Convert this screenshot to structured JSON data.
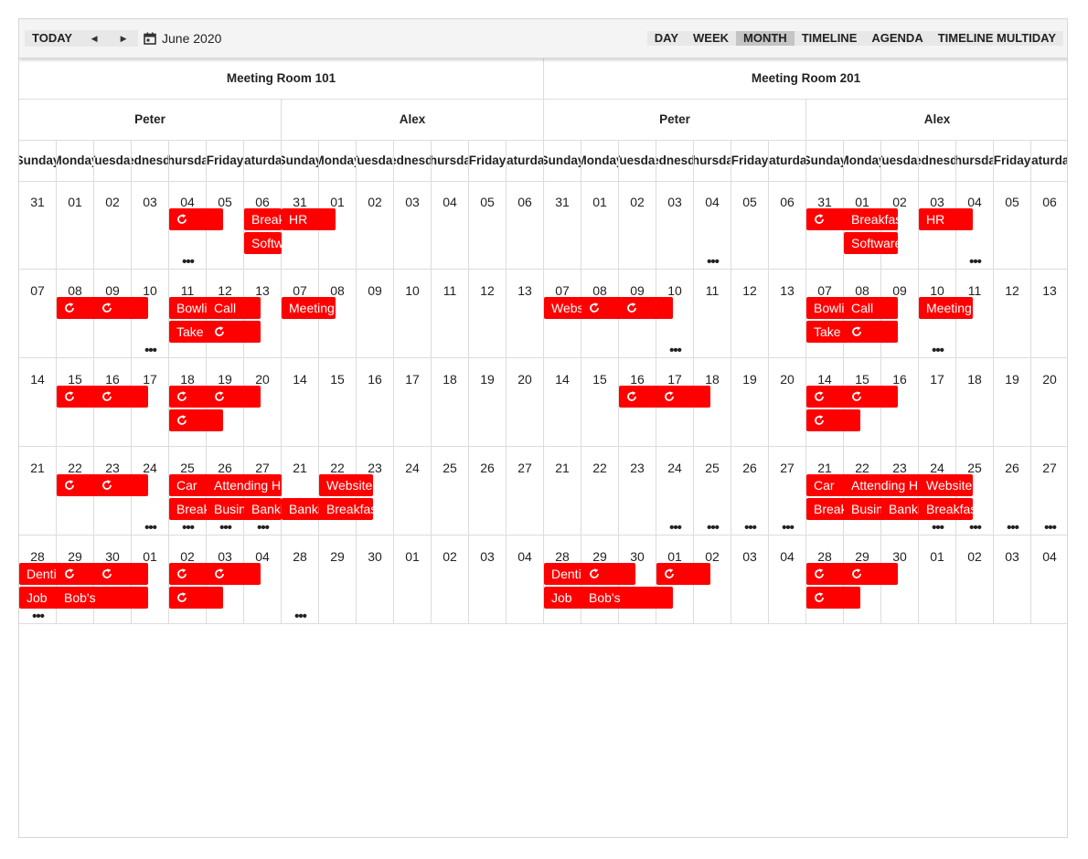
{
  "toolbar": {
    "today_label": "TODAY",
    "prev_icon": "caret-left-icon",
    "next_icon": "caret-right-icon",
    "date_icon": "calendar-icon",
    "date_label": "June 2020",
    "views": [
      {
        "label": "DAY",
        "active": false
      },
      {
        "label": "WEEK",
        "active": false
      },
      {
        "label": "MONTH",
        "active": true
      },
      {
        "label": "TIMELINE",
        "active": false
      },
      {
        "label": "AGENDA",
        "active": false
      },
      {
        "label": "TIMELINE MULTIDAY",
        "active": false
      }
    ]
  },
  "rooms": [
    "Meeting Room 101",
    "Meeting Room 201"
  ],
  "people": [
    "Peter",
    "Alex",
    "Peter",
    "Alex"
  ],
  "day_names": [
    "Sunday",
    "Monday",
    "Tuesday",
    "Wednesday",
    "Thursday",
    "Friday",
    "Saturday"
  ],
  "weeks": [
    [
      "31",
      "01",
      "02",
      "03",
      "04",
      "05",
      "06"
    ],
    [
      "07",
      "08",
      "09",
      "10",
      "11",
      "12",
      "13"
    ],
    [
      "14",
      "15",
      "16",
      "17",
      "18",
      "19",
      "20"
    ],
    [
      "21",
      "22",
      "23",
      "24",
      "25",
      "26",
      "27"
    ],
    [
      "28",
      "29",
      "30",
      "01",
      "02",
      "03",
      "04"
    ]
  ],
  "groups": [
    {
      "color": "red",
      "appointments": [
        {
          "week": 0,
          "day": 4,
          "span": 1,
          "row": 0,
          "text": "",
          "recurring": true
        },
        {
          "week": 0,
          "day": 6,
          "span": 1,
          "row": 0,
          "text": "Breakfast",
          "recurring": false
        },
        {
          "week": 0,
          "day": 6,
          "span": 1,
          "row": 1,
          "text": "Software",
          "recurring": false
        },
        {
          "week": 1,
          "day": 1,
          "span": 1,
          "row": 0,
          "text": "",
          "recurring": true
        },
        {
          "week": 1,
          "day": 2,
          "span": 1,
          "row": 0,
          "text": "",
          "recurring": true
        },
        {
          "week": 1,
          "day": 4,
          "span": 1,
          "row": 0,
          "text": "Bowling",
          "recurring": false
        },
        {
          "week": 1,
          "day": 4,
          "span": 1,
          "row": 1,
          "text": "Take",
          "recurring": false
        },
        {
          "week": 1,
          "day": 5,
          "span": 1,
          "row": 0,
          "text": "Call",
          "recurring": false
        },
        {
          "week": 1,
          "day": 5,
          "span": 1,
          "row": 1,
          "text": "",
          "recurring": true
        },
        {
          "week": 2,
          "day": 1,
          "span": 1,
          "row": 0,
          "text": "",
          "recurring": true
        },
        {
          "week": 2,
          "day": 2,
          "span": 1,
          "row": 0,
          "text": "",
          "recurring": true
        },
        {
          "week": 2,
          "day": 4,
          "span": 1,
          "row": 0,
          "text": "",
          "recurring": true
        },
        {
          "week": 2,
          "day": 4,
          "span": 1,
          "row": 1,
          "text": "",
          "recurring": true
        },
        {
          "week": 2,
          "day": 5,
          "span": 1,
          "row": 0,
          "text": "",
          "recurring": true
        },
        {
          "week": 3,
          "day": 1,
          "span": 1,
          "row": 0,
          "text": "",
          "recurring": true
        },
        {
          "week": 3,
          "day": 2,
          "span": 1,
          "row": 0,
          "text": "",
          "recurring": true
        },
        {
          "week": 3,
          "day": 4,
          "span": 1,
          "row": 0,
          "text": "Car",
          "recurring": false
        },
        {
          "week": 3,
          "day": 4,
          "span": 1,
          "row": 1,
          "text": "Breakfast",
          "recurring": false
        },
        {
          "week": 3,
          "day": 5,
          "span": 2,
          "row": 0,
          "text": "Attending HR",
          "recurring": false
        },
        {
          "week": 3,
          "day": 5,
          "span": 1,
          "row": 1,
          "text": "Business",
          "recurring": false
        },
        {
          "week": 3,
          "day": 6,
          "span": 1,
          "row": 1,
          "text": "Banking",
          "recurring": false
        },
        {
          "week": 4,
          "day": 0,
          "span": 1,
          "row": 0,
          "text": "Dentist",
          "recurring": false
        },
        {
          "week": 4,
          "day": 0,
          "span": 1,
          "row": 1,
          "text": "Job",
          "recurring": false
        },
        {
          "week": 4,
          "day": 1,
          "span": 1,
          "row": 0,
          "text": "",
          "recurring": true
        },
        {
          "week": 4,
          "day": 1,
          "span": 2,
          "row": 1,
          "text": "Bob's",
          "recurring": false
        },
        {
          "week": 4,
          "day": 2,
          "span": 1,
          "row": 0,
          "text": "",
          "recurring": true
        },
        {
          "week": 4,
          "day": 4,
          "span": 1,
          "row": 0,
          "text": "",
          "recurring": true
        },
        {
          "week": 4,
          "day": 4,
          "span": 1,
          "row": 1,
          "text": "",
          "recurring": true
        },
        {
          "week": 4,
          "day": 5,
          "span": 1,
          "row": 0,
          "text": "",
          "recurring": true
        }
      ],
      "more": [
        {
          "week": 0,
          "day": 4
        },
        {
          "week": 1,
          "day": 3
        },
        {
          "week": 3,
          "day": 3
        },
        {
          "week": 3,
          "day": 4
        },
        {
          "week": 3,
          "day": 5
        },
        {
          "week": 3,
          "day": 6
        },
        {
          "week": 4,
          "day": 0
        }
      ]
    },
    {
      "color": "red",
      "appointments": [
        {
          "week": 0,
          "day": 0,
          "span": 1,
          "row": 0,
          "text": "HR",
          "recurring": false
        },
        {
          "week": 1,
          "day": 0,
          "span": 1,
          "row": 0,
          "text": "Meeting",
          "recurring": false
        },
        {
          "week": 3,
          "day": 1,
          "span": 1,
          "row": 0,
          "text": "Website",
          "recurring": false
        },
        {
          "week": 3,
          "day": 0,
          "span": 1,
          "row": 1,
          "text": "Banking",
          "recurring": false
        },
        {
          "week": 3,
          "day": 1,
          "span": 1,
          "row": 1,
          "text": "Breakfast",
          "recurring": false
        }
      ],
      "more": [
        {
          "week": 4,
          "day": 0
        }
      ]
    },
    {
      "color": "red",
      "appointments": [
        {
          "week": 1,
          "day": 0,
          "span": 1,
          "row": 0,
          "text": "Website",
          "recurring": false
        },
        {
          "week": 1,
          "day": 1,
          "span": 1,
          "row": 0,
          "text": "",
          "recurring": true
        },
        {
          "week": 1,
          "day": 2,
          "span": 1,
          "row": 0,
          "text": "",
          "recurring": true
        },
        {
          "week": 2,
          "day": 2,
          "span": 1,
          "row": 0,
          "text": "",
          "recurring": true
        },
        {
          "week": 2,
          "day": 3,
          "span": 1,
          "row": 0,
          "text": "",
          "recurring": true
        },
        {
          "week": 4,
          "day": 0,
          "span": 1,
          "row": 0,
          "text": "Dentist",
          "recurring": false
        },
        {
          "week": 4,
          "day": 0,
          "span": 1,
          "row": 1,
          "text": "Job",
          "recurring": false
        },
        {
          "week": 4,
          "day": 1,
          "span": 1,
          "row": 0,
          "text": "",
          "recurring": true
        },
        {
          "week": 4,
          "day": 1,
          "span": 2,
          "row": 1,
          "text": "Bob's",
          "recurring": false
        },
        {
          "week": 4,
          "day": 3,
          "span": 1,
          "row": 0,
          "text": "",
          "recurring": true
        }
      ],
      "more": [
        {
          "week": 0,
          "day": 4
        },
        {
          "week": 1,
          "day": 3
        },
        {
          "week": 3,
          "day": 3
        },
        {
          "week": 3,
          "day": 4
        },
        {
          "week": 3,
          "day": 5
        },
        {
          "week": 3,
          "day": 6
        }
      ]
    },
    {
      "color": "red",
      "appointments": [
        {
          "week": 0,
          "day": 0,
          "span": 1,
          "row": 0,
          "text": "",
          "recurring": true
        },
        {
          "week": 0,
          "day": 1,
          "span": 1,
          "row": 0,
          "text": "Breakfast",
          "recurring": false
        },
        {
          "week": 0,
          "day": 1,
          "span": 1,
          "row": 1,
          "text": "Software",
          "recurring": false
        },
        {
          "week": 0,
          "day": 3,
          "span": 1,
          "row": 0,
          "text": "HR",
          "recurring": false
        },
        {
          "week": 1,
          "day": 0,
          "span": 1,
          "row": 0,
          "text": "Bowling",
          "recurring": false
        },
        {
          "week": 1,
          "day": 0,
          "span": 1,
          "row": 1,
          "text": "Take",
          "recurring": false
        },
        {
          "week": 1,
          "day": 1,
          "span": 1,
          "row": 0,
          "text": "Call",
          "recurring": false
        },
        {
          "week": 1,
          "day": 1,
          "span": 1,
          "row": 1,
          "text": "",
          "recurring": true
        },
        {
          "week": 1,
          "day": 3,
          "span": 1,
          "row": 0,
          "text": "Meeting",
          "recurring": false
        },
        {
          "week": 2,
          "day": 0,
          "span": 1,
          "row": 0,
          "text": "",
          "recurring": true
        },
        {
          "week": 2,
          "day": 0,
          "span": 1,
          "row": 1,
          "text": "",
          "recurring": true
        },
        {
          "week": 2,
          "day": 1,
          "span": 1,
          "row": 0,
          "text": "",
          "recurring": true
        },
        {
          "week": 3,
          "day": 0,
          "span": 1,
          "row": 0,
          "text": "Car",
          "recurring": false
        },
        {
          "week": 3,
          "day": 0,
          "span": 1,
          "row": 1,
          "text": "Breakfast",
          "recurring": false
        },
        {
          "week": 3,
          "day": 1,
          "span": 2,
          "row": 0,
          "text": "Attending HR",
          "recurring": false
        },
        {
          "week": 3,
          "day": 1,
          "span": 1,
          "row": 1,
          "text": "Business",
          "recurring": false
        },
        {
          "week": 3,
          "day": 2,
          "span": 1,
          "row": 1,
          "text": "Banking",
          "recurring": false
        },
        {
          "week": 3,
          "day": 3,
          "span": 1,
          "row": 0,
          "text": "Website",
          "recurring": false
        },
        {
          "week": 3,
          "day": 3,
          "span": 1,
          "row": 1,
          "text": "Breakfast",
          "recurring": false
        },
        {
          "week": 4,
          "day": 0,
          "span": 1,
          "row": 0,
          "text": "",
          "recurring": true
        },
        {
          "week": 4,
          "day": 0,
          "span": 1,
          "row": 1,
          "text": "",
          "recurring": true
        },
        {
          "week": 4,
          "day": 1,
          "span": 1,
          "row": 0,
          "text": "",
          "recurring": true
        }
      ],
      "more": [
        {
          "week": 0,
          "day": 4
        },
        {
          "week": 1,
          "day": 3
        },
        {
          "week": 3,
          "day": 3
        },
        {
          "week": 3,
          "day": 4
        },
        {
          "week": 3,
          "day": 5
        },
        {
          "week": 3,
          "day": 6
        }
      ]
    },
    {
      "color": "green",
      "appointments": [
        {
          "week": 0,
          "day": 4,
          "span": 1,
          "row": 0,
          "text": "",
          "recurring": true
        },
        {
          "week": 0,
          "day": 5,
          "span": 1,
          "row": 0,
          "text": "Breakfast",
          "recurring": false
        },
        {
          "week": 0,
          "day": 5,
          "span": 1,
          "row": 1,
          "text": "Software",
          "recurring": false
        },
        {
          "week": 0,
          "day": 6,
          "span": 1,
          "row": 0,
          "text": "",
          "recurring": false
        },
        {
          "week": 1,
          "day": 0,
          "span": 1,
          "row": 0,
          "text": "Website",
          "recurring": false
        },
        {
          "week": 1,
          "day": 1,
          "span": 1,
          "row": 0,
          "text": "",
          "recurring": true
        },
        {
          "week": 1,
          "day": 2,
          "span": 1,
          "row": 0,
          "text": "",
          "recurring": true
        },
        {
          "week": 1,
          "day": 4,
          "span": 1,
          "row": 0,
          "text": "Bowling",
          "recurring": false
        },
        {
          "week": 1,
          "day": 4,
          "span": 1,
          "row": 1,
          "text": "Take",
          "recurring": false
        },
        {
          "week": 1,
          "day": 5,
          "span": 1,
          "row": 0,
          "text": "Call",
          "recurring": false
        },
        {
          "week": 1,
          "day": 5,
          "span": 1,
          "row": 1,
          "text": "",
          "recurring": true
        },
        {
          "week": 1,
          "day": 6,
          "span": 1,
          "row": 0,
          "text": "",
          "recurring": false
        },
        {
          "week": 2,
          "day": 1,
          "span": 1,
          "row": 0,
          "text": "",
          "recurring": true
        },
        {
          "week": 2,
          "day": 2,
          "span": 1,
          "row": 0,
          "text": "",
          "recurring": true
        },
        {
          "week": 2,
          "day": 4,
          "span": 1,
          "row": 0,
          "text": "",
          "recurring": true
        },
        {
          "week": 2,
          "day": 4,
          "span": 1,
          "row": 1,
          "text": "",
          "recurring": true
        },
        {
          "week": 2,
          "day": 5,
          "span": 1,
          "row": 0,
          "text": "",
          "recurring": true
        },
        {
          "week": 3,
          "day": 1,
          "span": 1,
          "row": 0,
          "text": "",
          "recurring": true
        },
        {
          "week": 3,
          "day": 2,
          "span": 1,
          "row": 0,
          "text": "",
          "recurring": true
        },
        {
          "week": 3,
          "day": 4,
          "span": 1,
          "row": 0,
          "text": "Car",
          "recurring": false
        },
        {
          "week": 3,
          "day": 4,
          "span": 1,
          "row": 1,
          "text": "Breakfast",
          "recurring": false
        },
        {
          "week": 3,
          "day": 5,
          "span": 2,
          "row": 0,
          "text": "Attending HR",
          "recurring": false
        },
        {
          "week": 3,
          "day": 5,
          "span": 1,
          "row": 1,
          "text": "Business",
          "recurring": false
        },
        {
          "week": 3,
          "day": 6,
          "span": 1,
          "row": 1,
          "text": "",
          "recurring": false
        },
        {
          "week": 4,
          "day": 0,
          "span": 1,
          "row": 0,
          "text": "Dentist",
          "recurring": false
        },
        {
          "week": 4,
          "day": 0,
          "span": 1,
          "row": 1,
          "text": "Job",
          "recurring": false
        },
        {
          "week": 4,
          "day": 1,
          "span": 1,
          "row": 0,
          "text": "",
          "recurring": true
        },
        {
          "week": 4,
          "day": 1,
          "span": 2,
          "row": 1,
          "text": "Bob's",
          "recurring": false
        },
        {
          "week": 4,
          "day": 2,
          "span": 1,
          "row": 0,
          "text": "",
          "recurring": true
        },
        {
          "week": 4,
          "day": 4,
          "span": 1,
          "row": 0,
          "text": "",
          "recurring": true
        },
        {
          "week": 4,
          "day": 4,
          "span": 1,
          "row": 1,
          "text": "",
          "recurring": true
        },
        {
          "week": 4,
          "day": 5,
          "span": 1,
          "row": 0,
          "text": "",
          "recurring": true
        }
      ],
      "more": [
        {
          "week": 0,
          "day": 4
        },
        {
          "week": 1,
          "day": 3
        },
        {
          "week": 3,
          "day": 3
        },
        {
          "week": 3,
          "day": 4
        },
        {
          "week": 3,
          "day": 5
        },
        {
          "week": 3,
          "day": 6
        },
        {
          "week": 4,
          "day": 0
        }
      ]
    }
  ]
}
